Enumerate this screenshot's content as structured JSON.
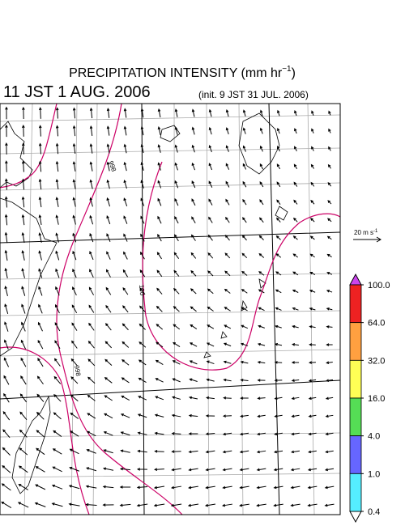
{
  "header": {
    "title": [
      "PRECIPITATION INTENSITY (mm hr",
      "−1",
      ")"
    ],
    "valid_time": "11 JST 1 AUG. 2006",
    "init_time": "(init. 9 JST 31 JUL. 2006)"
  },
  "map": {
    "contour_labels": [
      "998",
      "100",
      "998"
    ],
    "contour_color": "#cc0066",
    "wind_scale": [
      "20 m s",
      "-1"
    ]
  },
  "colorbar": {
    "ticks": [
      {
        "value": 100,
        "label": "100.0"
      },
      {
        "value": 64,
        "label": "64.0"
      },
      {
        "value": 32,
        "label": "32.0"
      },
      {
        "value": 16,
        "label": "16.0"
      },
      {
        "value": 4,
        "label": "4.0"
      },
      {
        "value": 1,
        "label": "1.0"
      },
      {
        "value": 0.4,
        "label": "0.4"
      }
    ],
    "colors": [
      "#ee2222",
      "#ffa040",
      "#ffff55",
      "#55dd55",
      "#6666ff",
      "#55eeff"
    ],
    "over_color": "#cc44ee",
    "under_color": "#ffffff"
  }
}
